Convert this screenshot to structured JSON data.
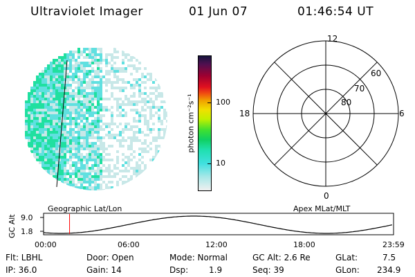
{
  "header": {
    "title": "Ultraviolet Imager",
    "date": "01 Jun 07",
    "time": "01:46:54 UT"
  },
  "image_panel": {
    "label": "Geographic Lat/Lon"
  },
  "colorbar": {
    "label": "photon cm⁻²s⁻¹",
    "ticks": [
      "100",
      "10"
    ]
  },
  "polar_plot": {
    "label": "Apex MLat/MLT",
    "mlt_labels": [
      "12",
      "18",
      "6",
      "0"
    ],
    "lat_labels": [
      "60",
      "70",
      "80"
    ]
  },
  "orbit": {
    "y_axis_label": "GC Alt",
    "y_ticks": [
      "9.0",
      "1.8"
    ],
    "x_ticks": [
      "00:00",
      "06:00",
      "12:00",
      "18:00",
      "23:59"
    ],
    "marker_time": "01:46:54"
  },
  "info": {
    "filter": "Flt: LBHL",
    "ip": "IP: 36.0",
    "door": "Door: Open",
    "gain": "Gain: 14",
    "mode": "Mode: Normal",
    "dsp_label": "Dsp:",
    "dsp_value": "1.9",
    "gc_alt": "GC Alt: 2.6 Re",
    "seq": "Seq: 39",
    "glat_label": "GLat:",
    "glat_value": "7.5",
    "glon_label": "GLon:",
    "glon_value": "234.9"
  },
  "colors": {
    "emission_bright": "#20e0a0",
    "emission_mid": "#60e0e0",
    "emission_faint": "#c8e8e8",
    "marker": "#ff0000"
  }
}
